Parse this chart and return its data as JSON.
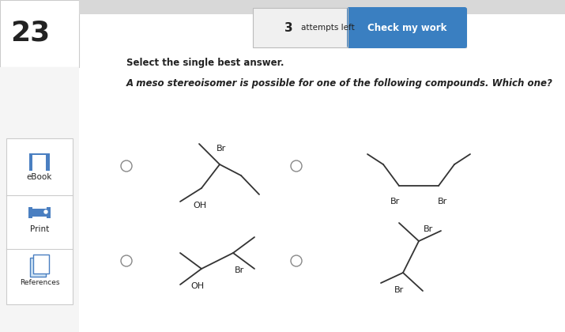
{
  "question_number": "23",
  "attempts_text": "attempts left",
  "button_text": "Check my work",
  "instruction": "Select the single best answer.",
  "question": "A meso stereoisomer is possible for one of the following compounds. Which one?",
  "background_color": "#ffffff",
  "button_color": "#3a7fc1",
  "button_text_color": "#ffffff"
}
